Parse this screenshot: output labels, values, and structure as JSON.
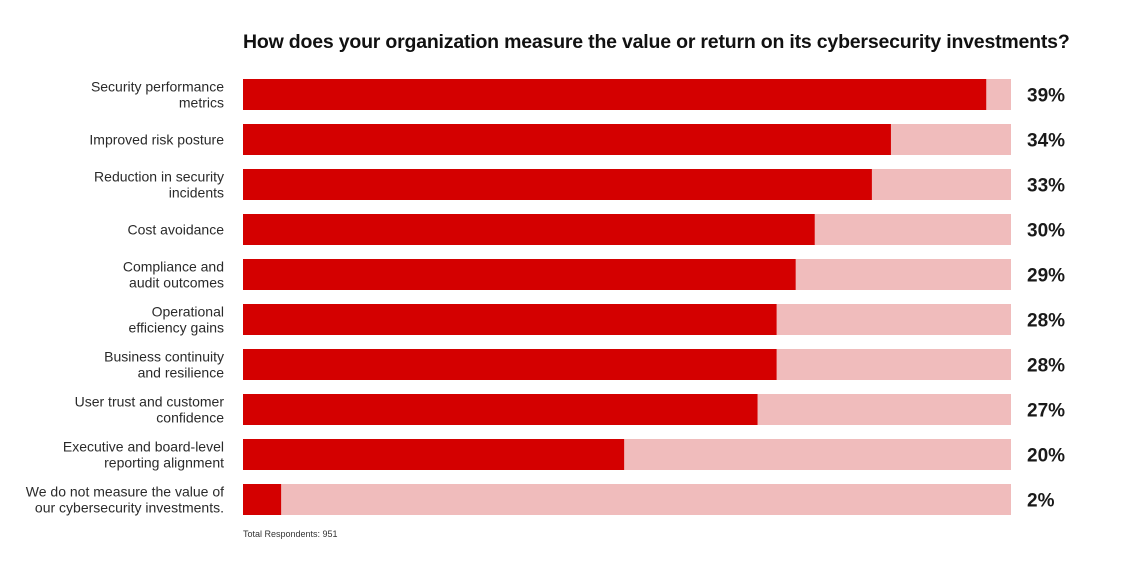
{
  "chart_data": {
    "type": "bar",
    "orientation": "horizontal",
    "title": "How does your organization measure the value or return on its cybersecurity investments?",
    "categories": [
      [
        "Security performance",
        "metrics"
      ],
      [
        "Improved risk posture"
      ],
      [
        "Reduction in security",
        "incidents"
      ],
      [
        "Cost avoidance"
      ],
      [
        "Compliance and",
        "audit outcomes"
      ],
      [
        "Operational",
        "efficiency gains"
      ],
      [
        "Business continuity",
        "and resilience"
      ],
      [
        "User trust and customer",
        "confidence"
      ],
      [
        "Executive and board-level",
        "reporting alignment"
      ],
      [
        "We do not measure the value of",
        "our cybersecurity investments."
      ]
    ],
    "values": [
      39,
      34,
      33,
      30,
      29,
      28,
      28,
      27,
      20,
      2
    ],
    "value_labels": [
      "39%",
      "34%",
      "33%",
      "30%",
      "29%",
      "28%",
      "28%",
      "27%",
      "20%",
      "2%"
    ],
    "xlim": [
      0,
      40
    ],
    "grid": false,
    "legend": "none",
    "colors": {
      "bar": "#d40000",
      "track": "#f0bcbc"
    }
  },
  "footnote": "Total Respondents: 951"
}
